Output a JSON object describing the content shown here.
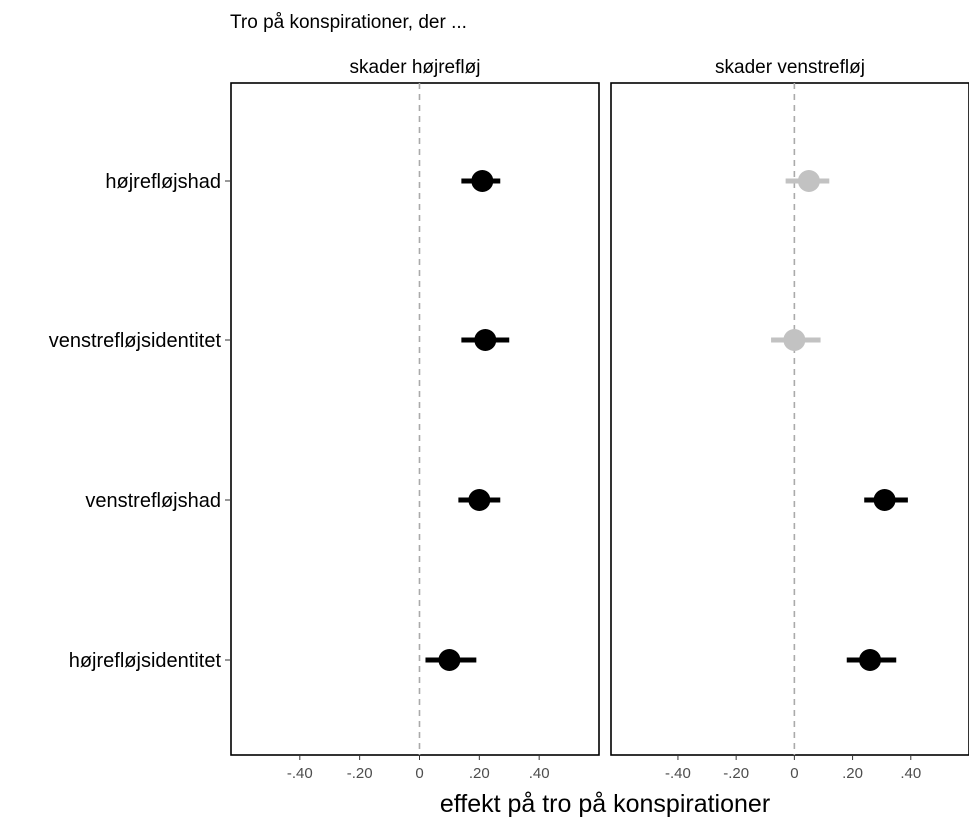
{
  "chart_data": {
    "type": "scatter",
    "subtitle": "Tro på konspirationer, der ...",
    "xlabel": "effekt på tro på konspirationer",
    "ylabel": "",
    "xlim": [
      -0.63,
      0.6
    ],
    "x_ticks": [
      -0.4,
      -0.2,
      0,
      0.2,
      0.4
    ],
    "x_tick_labels": [
      "-.40",
      "-.20",
      "0",
      ".20",
      ".40"
    ],
    "reference_line": 0,
    "categories": [
      "højrefløjshad",
      "venstrefløjsidentitet",
      "venstrefløjshad",
      "højrefløjsidentitet"
    ],
    "colors": {
      "significant": "#000000",
      "nonsignificant": "#c2c2c2",
      "reference": "#aaaaaa"
    },
    "panels": [
      {
        "label": "skader højrefløj",
        "points": [
          {
            "category": "højrefløjshad",
            "estimate": 0.21,
            "ci": [
              0.14,
              0.27
            ],
            "significant": true
          },
          {
            "category": "venstrefløjsidentitet",
            "estimate": 0.22,
            "ci": [
              0.14,
              0.3
            ],
            "significant": true
          },
          {
            "category": "venstrefløjshad",
            "estimate": 0.2,
            "ci": [
              0.13,
              0.27
            ],
            "significant": true
          },
          {
            "category": "højrefløjsidentitet",
            "estimate": 0.1,
            "ci": [
              0.02,
              0.19
            ],
            "significant": true
          }
        ]
      },
      {
        "label": "skader venstrefløj",
        "points": [
          {
            "category": "højrefløjshad",
            "estimate": 0.05,
            "ci": [
              -0.03,
              0.12
            ],
            "significant": false
          },
          {
            "category": "venstrefløjsidentitet",
            "estimate": 0.0,
            "ci": [
              -0.08,
              0.09
            ],
            "significant": false
          },
          {
            "category": "venstrefløjshad",
            "estimate": 0.31,
            "ci": [
              0.24,
              0.39
            ],
            "significant": true
          },
          {
            "category": "højrefløjsidentitet",
            "estimate": 0.26,
            "ci": [
              0.18,
              0.35
            ],
            "significant": true
          }
        ]
      }
    ]
  }
}
